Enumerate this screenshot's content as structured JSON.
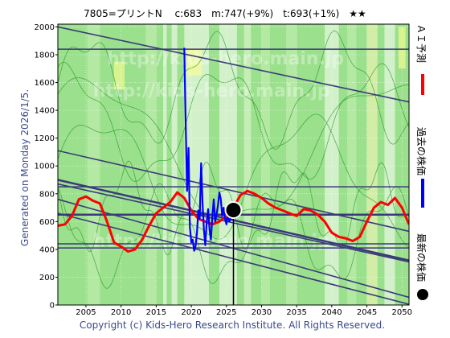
{
  "chart_data": {
    "type": "line",
    "title": "7805=プリントN　 c:683　m:747(+9%)　t:693(+1%)　★★",
    "generated": "Generated on Monday 2026/1/5.",
    "copyright": "Copyright (c) Kids-Hero Research Institute. All Rights Reserved.",
    "watermark": "http://kids-hero.main.jp",
    "xlim": [
      2001,
      2051
    ],
    "ylim": [
      0,
      2020
    ],
    "xticks": [
      2005,
      2010,
      2015,
      2020,
      2025,
      2030,
      2035,
      2040,
      2045,
      2050
    ],
    "yticks": [
      0,
      200,
      400,
      600,
      800,
      1000,
      1200,
      1400,
      1600,
      1800,
      2000
    ],
    "legend": [
      {
        "label": "ＡＩ予測",
        "color": "#ff0000",
        "kind": "line"
      },
      {
        "label": "過去の株価",
        "color": "#0000ff",
        "kind": "line"
      },
      {
        "label": "最新の株価",
        "color": "#000000",
        "kind": "dot"
      }
    ],
    "latest_point": {
      "x": 2026.0,
      "y": 683
    },
    "hlines": [
      1840,
      850,
      650,
      440,
      410
    ],
    "trendlines": [
      {
        "x1": 2001,
        "y1": 2000,
        "x2": 2051,
        "y2": 1460
      },
      {
        "x1": 2001,
        "y1": 1110,
        "x2": 2051,
        "y2": 530
      },
      {
        "x1": 2001,
        "y1": 900,
        "x2": 2051,
        "y2": 320
      },
      {
        "x1": 2001,
        "y1": 870,
        "x2": 2051,
        "y2": 310
      },
      {
        "x1": 2001,
        "y1": 760,
        "x2": 2051,
        "y2": 55
      },
      {
        "x1": 2001,
        "y1": 660,
        "x2": 2051,
        "y2": 5
      }
    ],
    "series": [
      {
        "name": "ＡＩ予測",
        "color": "#ff0000",
        "x": [
          2001,
          2002,
          2003,
          2004,
          2005,
          2006,
          2007,
          2008,
          2009,
          2010,
          2011,
          2012,
          2013,
          2014,
          2015,
          2016,
          2017,
          2018,
          2019,
          2020,
          2021,
          2022,
          2023,
          2024,
          2025,
          2026,
          2027,
          2028,
          2029,
          2030,
          2031,
          2032,
          2033,
          2034,
          2035,
          2036,
          2037,
          2038,
          2039,
          2040,
          2041,
          2042,
          2043,
          2044,
          2045,
          2046,
          2047,
          2048,
          2049,
          2050,
          2051
        ],
        "y": [
          570,
          580,
          640,
          760,
          780,
          750,
          730,
          600,
          450,
          420,
          385,
          400,
          470,
          570,
          660,
          700,
          740,
          810,
          770,
          680,
          620,
          600,
          580,
          600,
          640,
          700,
          790,
          820,
          800,
          770,
          730,
          700,
          680,
          660,
          640,
          690,
          680,
          650,
          600,
          520,
          490,
          480,
          460,
          490,
          600,
          700,
          740,
          720,
          770,
          700,
          580
        ]
      },
      {
        "name": "過去の株価",
        "color": "#0000ff",
        "x": [
          2019.0,
          2019.2,
          2019.4,
          2019.6,
          2019.8,
          2020.0,
          2020.2,
          2020.4,
          2020.6,
          2020.8,
          2021.0,
          2021.2,
          2021.4,
          2021.6,
          2021.8,
          2022.0,
          2022.2,
          2022.4,
          2022.6,
          2022.8,
          2023.0,
          2023.2,
          2023.4,
          2023.6,
          2023.8,
          2024.0,
          2024.2,
          2024.4,
          2024.6,
          2024.8,
          2025.0,
          2025.2,
          2025.4,
          2025.6,
          2025.8,
          2026.0
        ],
        "y": [
          1850,
          1300,
          820,
          1130,
          560,
          450,
          470,
          390,
          420,
          520,
          680,
          620,
          1020,
          740,
          540,
          430,
          600,
          690,
          540,
          470,
          640,
          760,
          600,
          650,
          720,
          810,
          760,
          640,
          700,
          620,
          580,
          650,
          600,
          620,
          650,
          683
        ]
      }
    ]
  }
}
